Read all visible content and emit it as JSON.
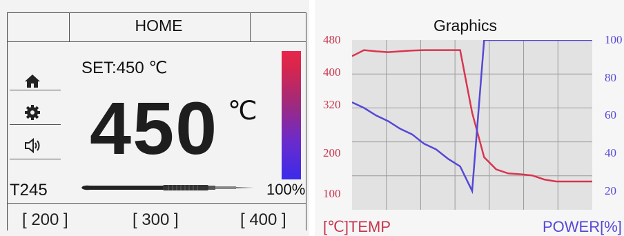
{
  "home_screen": {
    "header_title": "HOME",
    "set_label": "SET:450 ℃",
    "current_temp": "450",
    "unit": "℃",
    "tip_model": "T245",
    "power_percent": "100%",
    "power_level": 1.0,
    "presets": [
      "[ 200 ]",
      "[ 300 ]",
      "[ 400 ]"
    ],
    "icons": [
      "home-icon",
      "gear-icon",
      "speaker-icon"
    ],
    "colors": {
      "gradient_top": "#e8264a",
      "gradient_bottom": "#3b2bea"
    }
  },
  "graphics_screen": {
    "title": "Graphics",
    "left_axis_legend": "[℃]TEMP",
    "right_axis_legend": "POWER[%]",
    "colors": {
      "temp": "#d8354f",
      "power": "#5548d6"
    }
  },
  "chart_data": {
    "type": "line",
    "title": "Graphics",
    "x": [
      0,
      1,
      2,
      3,
      4,
      5,
      6,
      7,
      8,
      9,
      10,
      11,
      12,
      13,
      14,
      15,
      16,
      17,
      18,
      19,
      20
    ],
    "series": [
      {
        "name": "[℃]TEMP",
        "axis": "left",
        "values": [
          440,
          455,
          452,
          450,
          452,
          454,
          455,
          455,
          455,
          455,
          300,
          190,
          160,
          150,
          148,
          145,
          135,
          130,
          130,
          130,
          130
        ]
      },
      {
        "name": "POWER[%]",
        "axis": "right",
        "values": [
          67,
          64,
          60,
          57,
          53,
          50,
          45,
          42,
          37,
          33,
          20,
          100,
          100,
          100,
          100,
          100,
          100,
          100,
          100,
          100,
          100
        ]
      }
    ],
    "left_axis": {
      "ticks": [
        "480",
        "400",
        "320",
        "200",
        "100"
      ],
      "range": [
        60,
        480
      ]
    },
    "right_axis": {
      "ticks": [
        "100",
        "80",
        "60",
        "40",
        "20"
      ],
      "range": [
        10,
        100
      ]
    },
    "grid": true
  }
}
